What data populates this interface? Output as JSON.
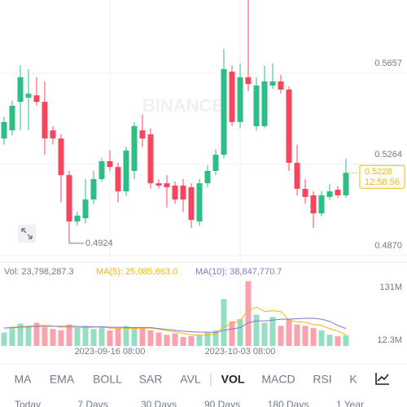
{
  "chart_data": {
    "type": "candlestick",
    "watermark": "BINANCE",
    "categories": [
      null,
      null,
      null,
      null,
      null,
      null,
      null,
      null,
      null,
      null,
      null,
      null,
      null,
      "2023-09-16 08:00",
      null,
      null,
      null,
      null,
      null,
      null,
      null,
      null,
      null,
      null,
      null,
      null,
      null,
      null,
      null,
      "2023-10-03 08:00",
      null,
      null,
      null,
      null,
      null,
      null,
      null,
      null,
      null,
      null,
      null,
      null,
      null
    ],
    "open": [
      0.5376,
      0.5411,
      0.5534,
      0.5552,
      0.5562,
      0.5534,
      0.5411,
      0.5376,
      0.5218,
      0.5018,
      0.5032,
      0.5113,
      0.5201,
      0.5278,
      0.5253,
      0.5148,
      0.5236,
      0.5411,
      0.5394,
      0.5183,
      0.5183,
      0.5173,
      0.5173,
      0.5166,
      0.5018,
      0.5183,
      0.5236,
      0.5306,
      0.5664,
      0.5447,
      0.564,
      0.5429,
      0.5429,
      0.5604,
      0.5622,
      0.5587,
      0.5271,
      0.5159,
      0.5131,
      0.5053,
      0.5124,
      0.5155,
      0.5131
    ],
    "high": [
      0.547,
      0.554,
      0.5692,
      0.5675,
      0.564,
      0.5622,
      0.5429,
      0.5394,
      0.5236,
      0.506,
      0.52,
      0.5236,
      0.529,
      0.5324,
      0.5271,
      0.534,
      0.5447,
      0.548,
      0.542,
      0.52,
      0.5218,
      0.519,
      0.5201,
      0.5183,
      0.5201,
      0.526,
      0.533,
      0.5762,
      0.569,
      0.57,
      0.5997,
      0.564,
      0.569,
      0.57,
      0.565,
      0.56,
      0.535,
      0.5201,
      0.5148,
      0.515,
      0.518,
      0.517,
      0.5289
    ],
    "low": [
      0.535,
      0.539,
      0.5411,
      0.5411,
      0.5517,
      0.5306,
      0.535,
      0.51,
      0.4924,
      0.5,
      0.501,
      0.5095,
      0.519,
      0.5236,
      0.51,
      0.513,
      0.52,
      0.534,
      0.516,
      0.516,
      0.5078,
      0.5095,
      0.506,
      0.499,
      0.5,
      0.5166,
      0.522,
      0.529,
      0.543,
      0.542,
      0.558,
      0.541,
      0.542,
      0.559,
      0.557,
      0.5236,
      0.513,
      0.5095,
      0.499,
      0.504,
      0.511,
      0.512,
      0.512
    ],
    "close": [
      0.5447,
      0.5517,
      0.564,
      0.5569,
      0.5534,
      0.5376,
      0.5376,
      0.5218,
      0.5018,
      0.5043,
      0.5113,
      0.5201,
      0.5278,
      0.5253,
      0.5148,
      0.5324,
      0.5429,
      0.5376,
      0.5183,
      0.5173,
      0.5166,
      0.5113,
      0.5113,
      0.5025,
      0.5183,
      0.5236,
      0.5306,
      0.5675,
      0.5447,
      0.564,
      0.5611,
      0.5604,
      0.5622,
      0.5622,
      0.5587,
      0.5271,
      0.5159,
      0.5124,
      0.5053,
      0.5131,
      0.5148,
      0.5131,
      0.5228
    ],
    "up_color": "#2ebd85",
    "down_color": "#f6465d",
    "ylim": [
      0.4843,
      0.5973
    ],
    "yticks": [
      {
        "value": 0.487,
        "label": "0.4870"
      },
      0.5264,
      0.5657
    ],
    "countdown": "12:58:56",
    "volume_label": "Vol: 23,798,287.3",
    "volumes": [
      30000000,
      40000000,
      50000000,
      45000000,
      52000000,
      42000000,
      38000000,
      35000000,
      48000000,
      40000000,
      45000000,
      38000000,
      42000000,
      35000000,
      40000000,
      45000000,
      38000000,
      42000000,
      35000000,
      30000000,
      25000000,
      28000000,
      20000000,
      22000000,
      25000000,
      30000000,
      35000000,
      105000000,
      55000000,
      60000000,
      145000000,
      70000000,
      52000000,
      65000000,
      45000000,
      60000000,
      48000000,
      45000000,
      40000000,
      35000000,
      25000000,
      22000000,
      23798287.3
    ],
    "vlim": [
      0,
      155000000
    ],
    "vticks": [
      {
        "value": 12300000,
        "label": "12.3M"
      },
      {
        "value": 131000000,
        "label": "131M"
      }
    ],
    "series": [
      {
        "name": "MA(5): 25,085,663.0",
        "color": "#f0b90b",
        "values": [
          40000000,
          42000000,
          43000000,
          44000000,
          45000000,
          46000000,
          45000000,
          42000000,
          43000000,
          41000000,
          41000000,
          42000000,
          43000000,
          40000000,
          40000000,
          40000000,
          39000000,
          40000000,
          40000000,
          38000000,
          34000000,
          32000000,
          28000000,
          25000000,
          24000000,
          25000000,
          26000000,
          43000000,
          50000000,
          57000000,
          80000000,
          87000000,
          77000000,
          79000000,
          77000000,
          58000000,
          54000000,
          53000000,
          48000000,
          46000000,
          39000000,
          33000000,
          25085663
        ]
      },
      {
        "name": "MA(10): 38,847,770.7",
        "color": "#8a75c9",
        "values": [
          40000000,
          41000000,
          42000000,
          43000000,
          44000000,
          44000000,
          44000000,
          44000000,
          44000000,
          44000000,
          43000000,
          43000000,
          43000000,
          42000000,
          42000000,
          41000000,
          41000000,
          41000000,
          41000000,
          39000000,
          37000000,
          35000000,
          33000000,
          32000000,
          31000000,
          31000000,
          30000000,
          35000000,
          38000000,
          41000000,
          52000000,
          56000000,
          56000000,
          58000000,
          60000000,
          60000000,
          61000000,
          62000000,
          62000000,
          60000000,
          55000000,
          46000000,
          38847770.7
        ]
      }
    ]
  },
  "indicator_tabs": [
    "MA",
    "EMA",
    "BOLL",
    "SAR",
    "AVL",
    "VOL",
    "MACD",
    "RSI",
    "K"
  ],
  "active_tab": "VOL",
  "range_tabs": [
    "Today",
    "7 Days",
    "30 Days",
    "90 Days",
    "180 Days",
    "1 Year"
  ]
}
